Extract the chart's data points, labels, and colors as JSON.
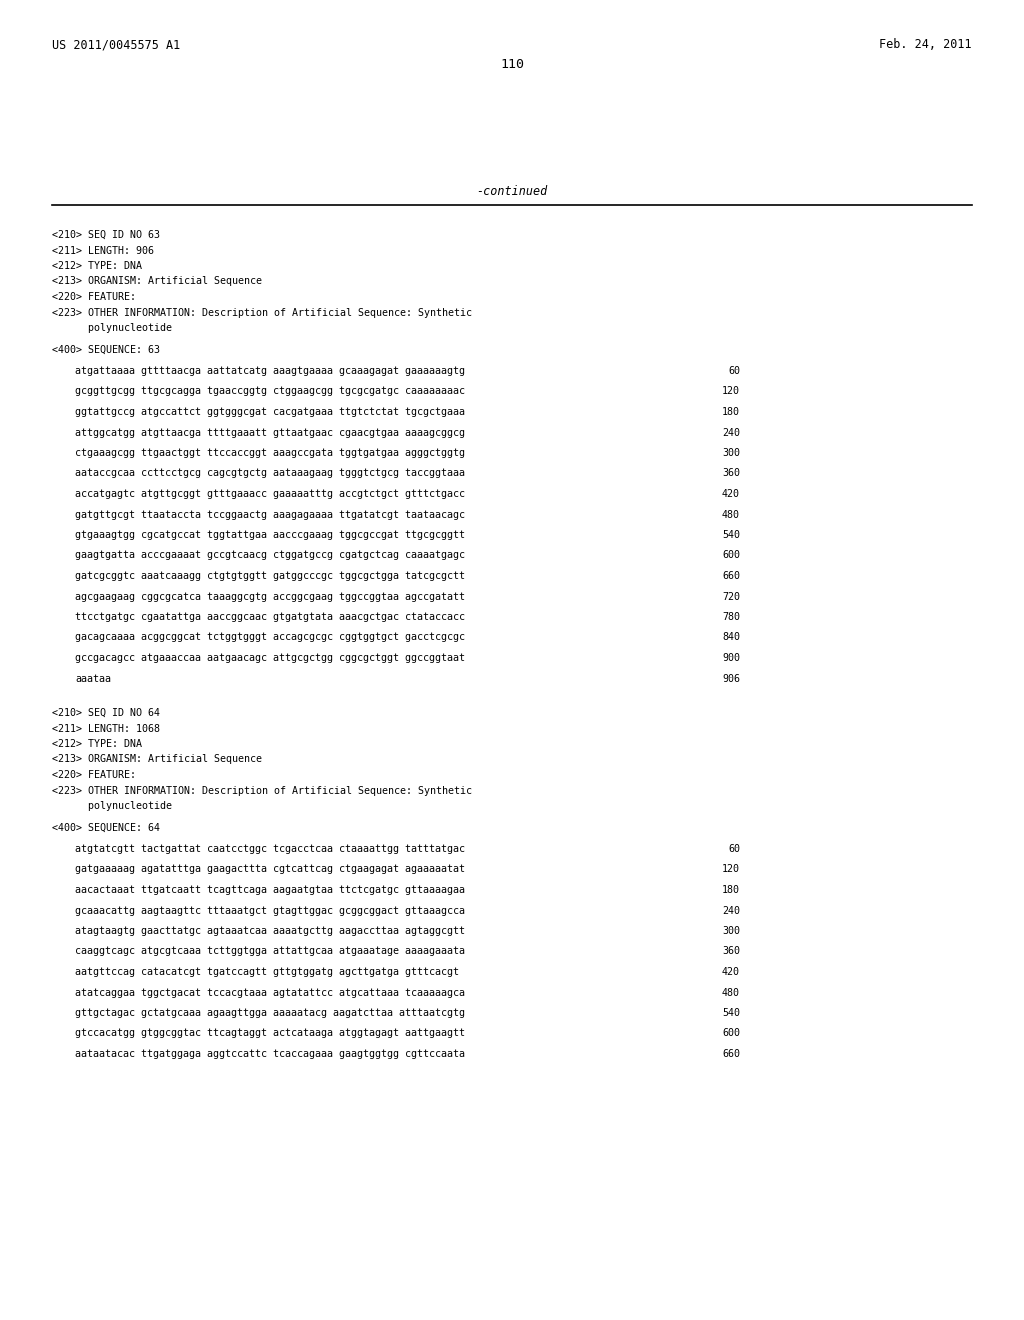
{
  "background_color": "#ffffff",
  "header_left": "US 2011/0045575 A1",
  "header_right": "Feb. 24, 2011",
  "page_number": "110",
  "continued_text": "-continued",
  "font_family": "DejaVu Sans Mono",
  "header_font_size": 8.5,
  "body_font_size": 7.2,
  "seq63_meta": [
    "<210> SEQ ID NO 63",
    "<211> LENGTH: 906",
    "<212> TYPE: DNA",
    "<213> ORGANISM: Artificial Sequence",
    "<220> FEATURE:",
    "<223> OTHER INFORMATION: Description of Artificial Sequence: Synthetic",
    "      polynucleotide"
  ],
  "seq63_label": "<400> SEQUENCE: 63",
  "seq63_data": [
    [
      "atgattaaaa gttttaacga aattatcatg aaagtgaaaa gcaaagagat gaaaaaagtg",
      "60"
    ],
    [
      "gcggttgcgg ttgcgcagga tgaaccggtg ctggaagcgg tgcgcgatgc caaaaaaaac",
      "120"
    ],
    [
      "ggtattgccg atgccattct ggtgggcgat cacgatgaaa ttgtctctat tgcgctgaaa",
      "180"
    ],
    [
      "attggcatgg atgttaacga ttttgaaatt gttaatgaac cgaacgtgaa aaaagcggcg",
      "240"
    ],
    [
      "ctgaaagcgg ttgaactggt ttccaccggt aaagccgata tggtgatgaa agggctggtg",
      "300"
    ],
    [
      "aataccgcaa ccttcctgcg cagcgtgctg aataaagaag tgggtctgcg taccggtaaa",
      "360"
    ],
    [
      "accatgagtc atgttgcggt gtttgaaacc gaaaaatttg accgtctgct gtttctgacc",
      "420"
    ],
    [
      "gatgttgcgt ttaataccta tccggaactg aaagagaaaa ttgatatcgt taataacagc",
      "480"
    ],
    [
      "gtgaaagtgg cgcatgccat tggtattgaa aacccgaaag tggcgccgat ttgcgcggtt",
      "540"
    ],
    [
      "gaagtgatta acccgaaaat gccgtcaacg ctggatgccg cgatgctcag caaaatgagc",
      "600"
    ],
    [
      "gatcgcggtc aaatcaaagg ctgtgtggtt gatggcccgc tggcgctgga tatcgcgctt",
      "660"
    ],
    [
      "agcgaagaag cggcgcatca taaaggcgtg accggcgaag tggccggtaa agccgatatt",
      "720"
    ],
    [
      "ttcctgatgc cgaatattga aaccggcaac gtgatgtata aaacgctgac ctataccacc",
      "780"
    ],
    [
      "gacagcaaaa acggcggcat tctggtgggt accagcgcgc cggtggtgct gacctcgcgc",
      "840"
    ],
    [
      "gccgacagcc atgaaaccaa aatgaacagc attgcgctgg cggcgctggt ggccggtaat",
      "900"
    ],
    [
      "aaataa",
      "906"
    ]
  ],
  "seq64_meta": [
    "<210> SEQ ID NO 64",
    "<211> LENGTH: 1068",
    "<212> TYPE: DNA",
    "<213> ORGANISM: Artificial Sequence",
    "<220> FEATURE:",
    "<223> OTHER INFORMATION: Description of Artificial Sequence: Synthetic",
    "      polynucleotide"
  ],
  "seq64_label": "<400> SEQUENCE: 64",
  "seq64_data": [
    [
      "atgtatcgtt tactgattat caatcctggc tcgacctcaa ctaaaattgg tatttatgac",
      "60"
    ],
    [
      "gatgaaaaag agatatttga gaagacttta cgtcattcag ctgaagagat agaaaaatat",
      "120"
    ],
    [
      "aacactaaat ttgatcaatt tcagttcaga aagaatgtaa ttctcgatgc gttaaaagaa",
      "180"
    ],
    [
      "gcaaacattg aagtaagttc tttaaatgct gtagttggac gcggcggact gttaaagcca",
      "240"
    ],
    [
      "atagtaagtg gaacttatgc agtaaatcaa aaaatgcttg aagaccttaa agtaggcgtt",
      "300"
    ],
    [
      "caaggtcagc atgcgtcaaa tcttggtgga attattgcaa atgaaatage aaaagaaata",
      "360"
    ],
    [
      "aatgttccag catacatcgt tgatccagtt gttgtggatg agcttgatga gtttcacgt",
      "420"
    ],
    [
      "atatcaggaa tggctgacat tccacgtaaa agtatattcc atgcattaaa tcaaaaagca",
      "480"
    ],
    [
      "gttgctagac gctatgcaaa agaagttgga aaaaatacg aagatcttaa atttaatcgtg",
      "540"
    ],
    [
      "gtccacatgg gtggcggtac ttcagtaggt actcataaga atggtagagt aattgaagtt",
      "600"
    ],
    [
      "aataatacac ttgatggaga aggtccattc tcaccagaaa gaagtggtgg cgttccaata",
      "660"
    ]
  ]
}
